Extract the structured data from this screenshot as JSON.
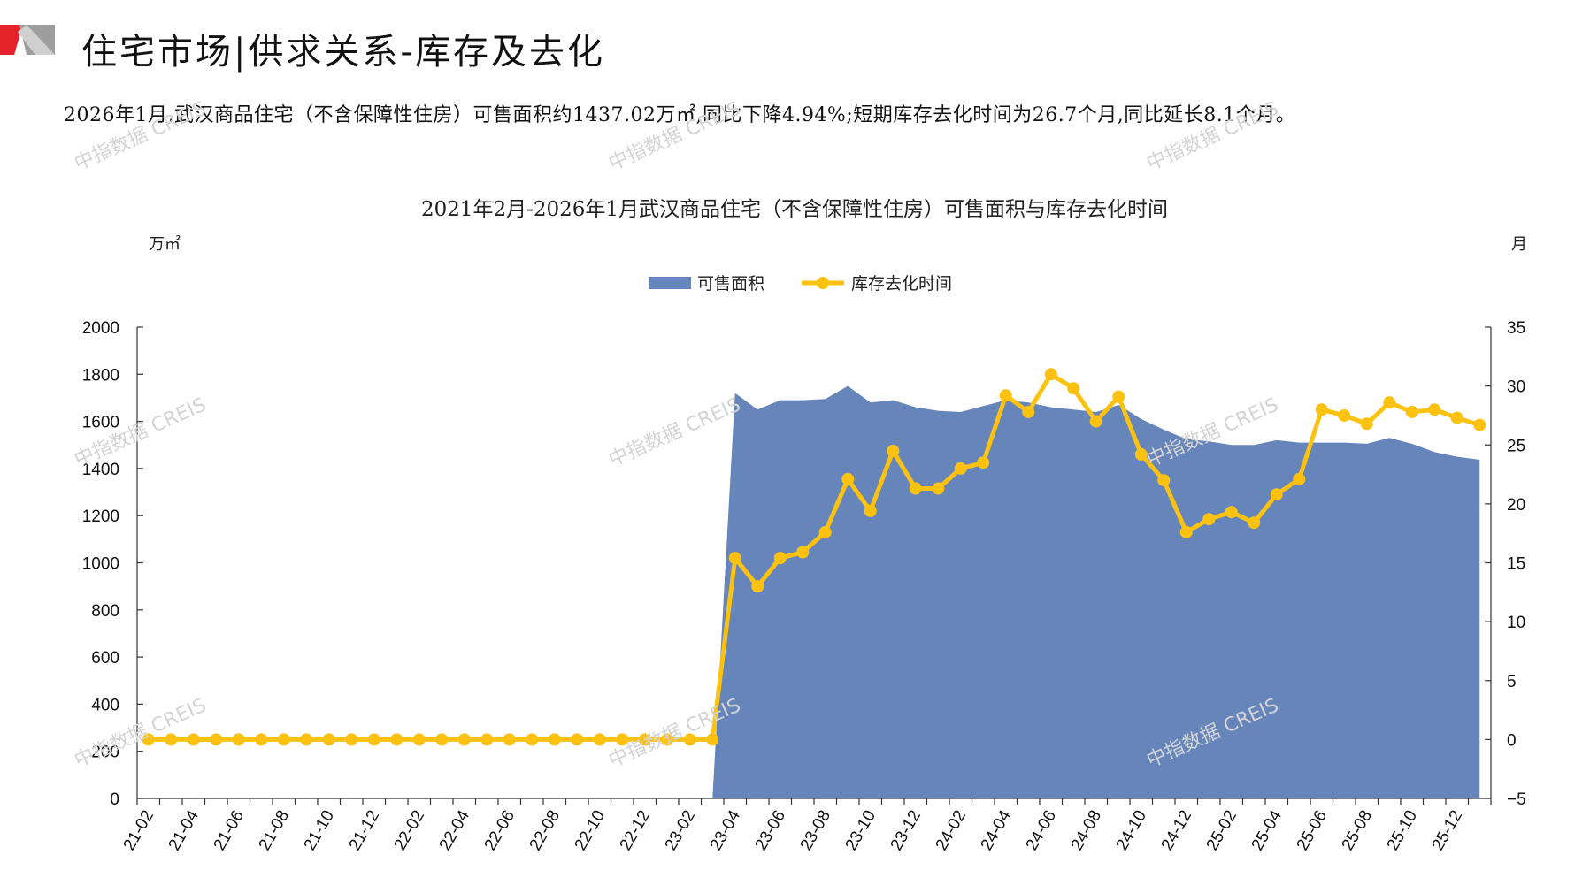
{
  "header": {
    "title": "住宅市场|供求关系-库存及去化",
    "logo_colors": [
      "#e4232a",
      "#9e9e9e"
    ]
  },
  "summary": "2026年1月,武汉商品住宅（不含保障性住房）可售面积约1437.02万㎡,同比下降4.94%;短期库存去化时间为26.7个月,同比延长8.1个月。",
  "watermark": "中指数据 CREIS",
  "chart_data": {
    "type": "area",
    "title": "2021年2月-2026年1月武汉商品住宅（不含保障性住房）可售面积与库存去化时间",
    "left_unit": "万㎡",
    "right_unit": "月",
    "legend_position": "top-center",
    "grid": false,
    "colors": {
      "area": "#6585bb",
      "line": "#fcc20f"
    },
    "y_left": {
      "min": 0,
      "max": 2000,
      "ticks": [
        0,
        200,
        400,
        600,
        800,
        1000,
        1200,
        1400,
        1600,
        1800,
        2000
      ]
    },
    "y_right": {
      "min": -5,
      "max": 35,
      "ticks": [
        -5,
        0,
        5,
        10,
        15,
        20,
        25,
        30,
        35
      ]
    },
    "x_tick_labels": [
      "21-02",
      "21-04",
      "21-06",
      "21-08",
      "21-10",
      "21-12",
      "22-02",
      "22-04",
      "22-06",
      "22-08",
      "22-10",
      "22-12",
      "23-02",
      "23-04",
      "23-06",
      "23-08",
      "23-10",
      "23-12",
      "24-02",
      "24-04",
      "24-06",
      "24-08",
      "24-10",
      "24-12",
      "25-02",
      "25-04",
      "25-06",
      "25-08",
      "25-10",
      "25-12"
    ],
    "months": [
      "21-02",
      "21-03",
      "21-04",
      "21-05",
      "21-06",
      "21-07",
      "21-08",
      "21-09",
      "21-10",
      "21-11",
      "21-12",
      "22-01",
      "22-02",
      "22-03",
      "22-04",
      "22-05",
      "22-06",
      "22-07",
      "22-08",
      "22-09",
      "22-10",
      "22-11",
      "22-12",
      "23-01",
      "23-02",
      "23-03",
      "23-04",
      "23-05",
      "23-06",
      "23-07",
      "23-08",
      "23-09",
      "23-10",
      "23-11",
      "23-12",
      "24-01",
      "24-02",
      "24-03",
      "24-04",
      "24-05",
      "24-06",
      "24-07",
      "24-08",
      "24-09",
      "24-10",
      "24-11",
      "24-12",
      "25-01",
      "25-02",
      "25-03",
      "25-04",
      "25-05",
      "25-06",
      "25-07",
      "25-08",
      "25-09",
      "25-10",
      "25-11",
      "25-12",
      "26-01"
    ],
    "series": [
      {
        "name": "可售面积",
        "type": "area",
        "axis": "left",
        "values": [
          null,
          null,
          null,
          null,
          null,
          null,
          null,
          null,
          null,
          null,
          null,
          null,
          null,
          null,
          null,
          null,
          null,
          null,
          null,
          null,
          null,
          null,
          null,
          null,
          null,
          0,
          1720,
          1650,
          1690,
          1690,
          1695,
          1750,
          1680,
          1690,
          1660,
          1645,
          1640,
          1665,
          1690,
          1680,
          1660,
          1650,
          1640,
          1670,
          1610,
          1565,
          1525,
          1515,
          1500,
          1500,
          1520,
          1510,
          1510,
          1510,
          1505,
          1530,
          1505,
          1470,
          1450,
          1437
        ]
      },
      {
        "name": "库存去化时间",
        "type": "line",
        "axis": "right",
        "values": [
          0,
          0,
          0,
          0,
          0,
          0,
          0,
          0,
          0,
          0,
          0,
          0,
          0,
          0,
          0,
          0,
          0,
          0,
          0,
          0,
          0,
          0,
          0,
          0,
          0,
          0,
          15.4,
          13.0,
          15.4,
          15.9,
          17.6,
          22.1,
          19.4,
          24.5,
          21.3,
          21.3,
          23.0,
          23.5,
          29.2,
          27.8,
          31.0,
          29.8,
          27.0,
          29.1,
          24.2,
          22.0,
          17.6,
          18.7,
          19.3,
          18.4,
          20.8,
          22.1,
          28.0,
          27.5,
          26.8,
          28.6,
          27.8,
          28.0,
          27.3,
          26.7
        ]
      }
    ]
  }
}
